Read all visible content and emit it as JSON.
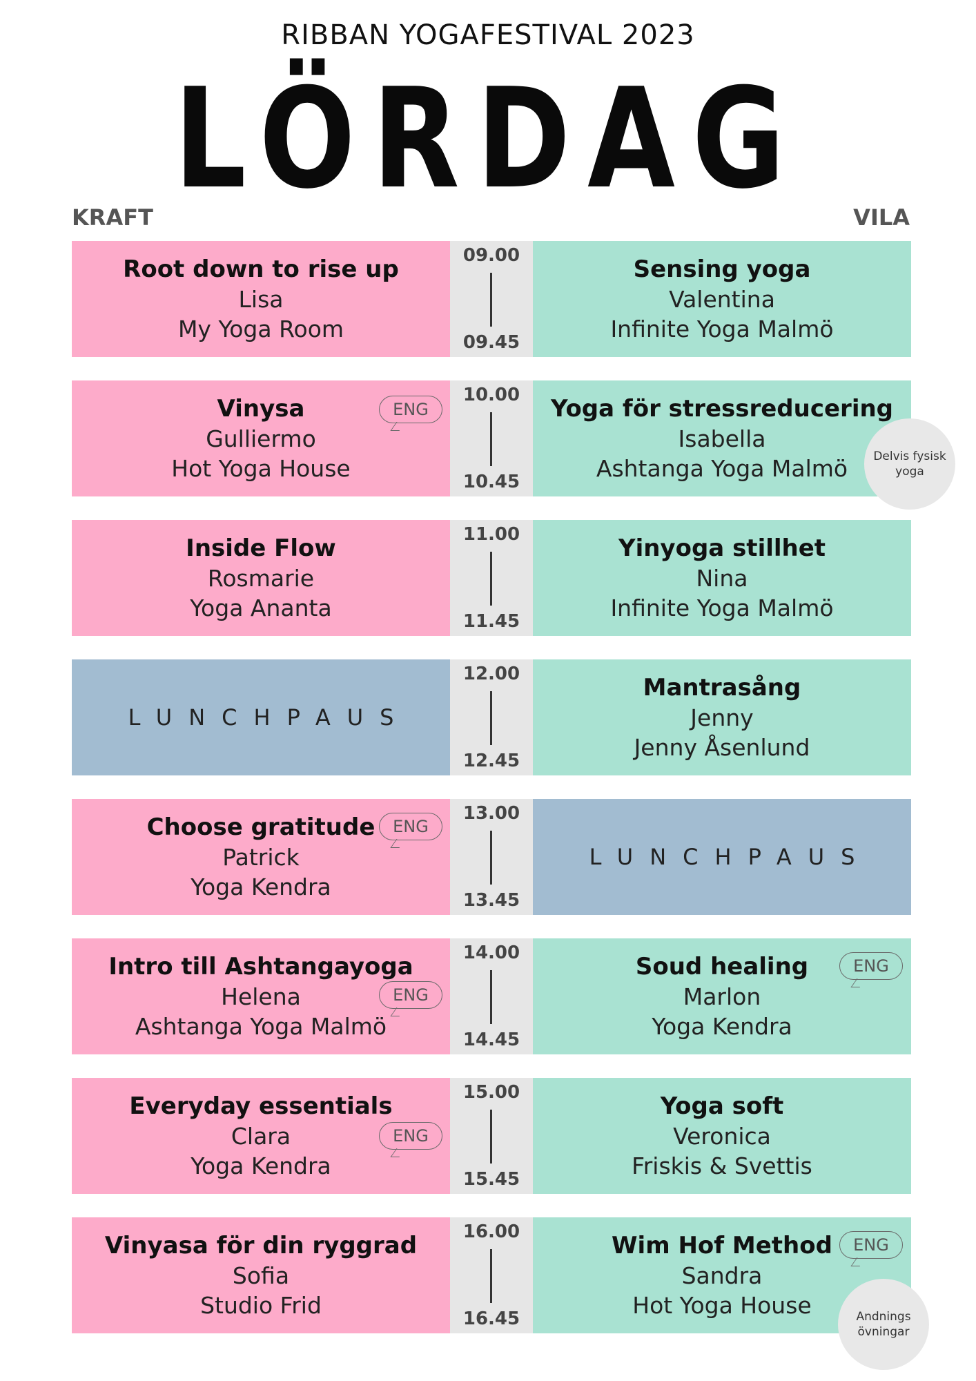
{
  "header": {
    "subtitle": "RIBBAN YOGAFESTIVAL 2023",
    "title": "LÖRDAG",
    "col_left": "KRAFT",
    "col_right": "VILA"
  },
  "rows": [
    {
      "start": "09.00",
      "end": "09.45",
      "left": {
        "title": "Root down to rise up",
        "teacher": "Lisa",
        "studio": "My Yoga Room"
      },
      "right": {
        "title": "Sensing yoga",
        "teacher": "Valentina",
        "studio": "Infinite Yoga Malmö"
      }
    },
    {
      "start": "10.00",
      "end": "10.45",
      "left": {
        "title": "Vinysa",
        "teacher": "Gulliermo",
        "studio": "Hot Yoga House",
        "badge": "ENG"
      },
      "right": {
        "title": "Yoga för stressreducering",
        "teacher": "Isabella",
        "studio": "Ashtanga Yoga Malmö",
        "note": "Delvis fysisk yoga"
      }
    },
    {
      "start": "11.00",
      "end": "11.45",
      "left": {
        "title": "Inside Flow",
        "teacher": "Rosmarie",
        "studio": "Yoga Ananta"
      },
      "right": {
        "title": "Yinyoga stillhet",
        "teacher": "Nina",
        "studio": "Infinite Yoga Malmö"
      }
    },
    {
      "start": "12.00",
      "end": "12.45",
      "left": {
        "lunch": "LUNCHPAUS"
      },
      "right": {
        "title": "Mantrasång",
        "teacher": "Jenny",
        "studio": "Jenny Åsenlund"
      }
    },
    {
      "start": "13.00",
      "end": "13.45",
      "left": {
        "title": "Choose gratitude",
        "teacher": "Patrick",
        "studio": "Yoga Kendra",
        "badge": "ENG"
      },
      "right": {
        "lunch": "LUNCHPAUS"
      }
    },
    {
      "start": "14.00",
      "end": "14.45",
      "left": {
        "title": "Intro till Ashtangayoga",
        "teacher": "Helena",
        "studio": "Ashtanga Yoga Malmö",
        "badge": "ENG"
      },
      "right": {
        "title": "Soud healing",
        "teacher": "Marlon",
        "studio": "Yoga Kendra",
        "badge": "ENG"
      }
    },
    {
      "start": "15.00",
      "end": "15.45",
      "left": {
        "title": "Everyday essentials",
        "teacher": "Clara",
        "studio": "Yoga Kendra",
        "badge": "ENG"
      },
      "right": {
        "title": "Yoga soft",
        "teacher": "Veronica",
        "studio": "Friskis & Svettis"
      }
    },
    {
      "start": "16.00",
      "end": "16.45",
      "left": {
        "title": "Vinyasa för din ryggrad",
        "teacher": "Sofia",
        "studio": "Studio Frid"
      },
      "right": {
        "title": "Wim Hof Method",
        "teacher": "Sandra",
        "studio": "Hot Yoga House",
        "badge": "ENG",
        "note": "Andnings övningar"
      }
    }
  ],
  "colors": {
    "pink": "#fdabca",
    "mint": "#a9e2d2",
    "lunch": "#a2bcd1",
    "time": "#e6e6e6"
  }
}
